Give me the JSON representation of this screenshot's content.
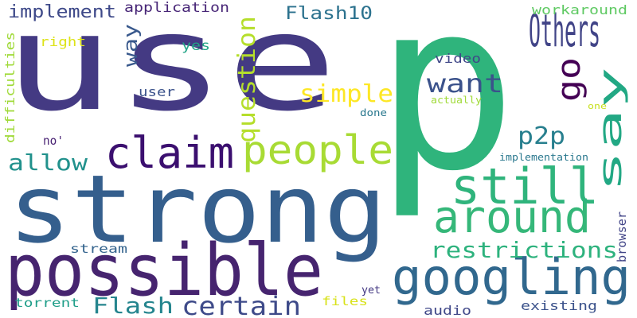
{
  "words": [
    {
      "text": "use",
      "color": "#443a83"
    },
    {
      "text": "p",
      "color": "#2fb47c"
    },
    {
      "text": "strong",
      "color": "#355f8d"
    },
    {
      "text": "possible",
      "color": "#46246f"
    },
    {
      "text": "googling",
      "color": "#31688e"
    },
    {
      "text": "people",
      "color": "#a8db34"
    },
    {
      "text": "around",
      "color": "#35b779"
    },
    {
      "text": "claim",
      "color": "#3b0f6f"
    },
    {
      "text": "still",
      "color": "#2fb47c"
    },
    {
      "text": "Others",
      "color": "#414487"
    },
    {
      "text": "say",
      "color": "#22a884"
    },
    {
      "text": "go",
      "color": "#440154"
    },
    {
      "text": "certain",
      "color": "#3e4a89"
    },
    {
      "text": "restrictions",
      "color": "#2db27d"
    },
    {
      "text": "want",
      "color": "#3b528b"
    },
    {
      "text": "simple",
      "color": "#fde725"
    },
    {
      "text": "question",
      "color": "#b5de2b"
    },
    {
      "text": "Flash",
      "color": "#25858e"
    },
    {
      "text": "allow",
      "color": "#21918c"
    },
    {
      "text": "p2p",
      "color": "#277f8e"
    },
    {
      "text": "implement",
      "color": "#3e4989"
    },
    {
      "text": "way",
      "color": "#38588c"
    },
    {
      "text": "Flash10",
      "color": "#2c728e"
    },
    {
      "text": "application",
      "color": "#482677"
    },
    {
      "text": "workaround",
      "color": "#5ec962"
    },
    {
      "text": "difficulties",
      "color": "#a0da39"
    },
    {
      "text": "right",
      "color": "#dde318"
    },
    {
      "text": "yes",
      "color": "#20a486"
    },
    {
      "text": "video",
      "color": "#3f4788"
    },
    {
      "text": "user",
      "color": "#3b528b"
    },
    {
      "text": "actually",
      "color": "#a0da39"
    },
    {
      "text": "one",
      "color": "#c8e020"
    },
    {
      "text": "done",
      "color": "#2a788e"
    },
    {
      "text": "no'",
      "color": "#482173"
    },
    {
      "text": "implementation",
      "color": "#2a788e"
    },
    {
      "text": "browser",
      "color": "#414487"
    },
    {
      "text": "stream",
      "color": "#33638d"
    },
    {
      "text": "torrent",
      "color": "#1f9e89"
    },
    {
      "text": "files",
      "color": "#d8e219"
    },
    {
      "text": "yet",
      "color": "#443983"
    },
    {
      "text": "audio",
      "color": "#3f4788"
    },
    {
      "text": "existing",
      "color": "#3b528b"
    }
  ]
}
